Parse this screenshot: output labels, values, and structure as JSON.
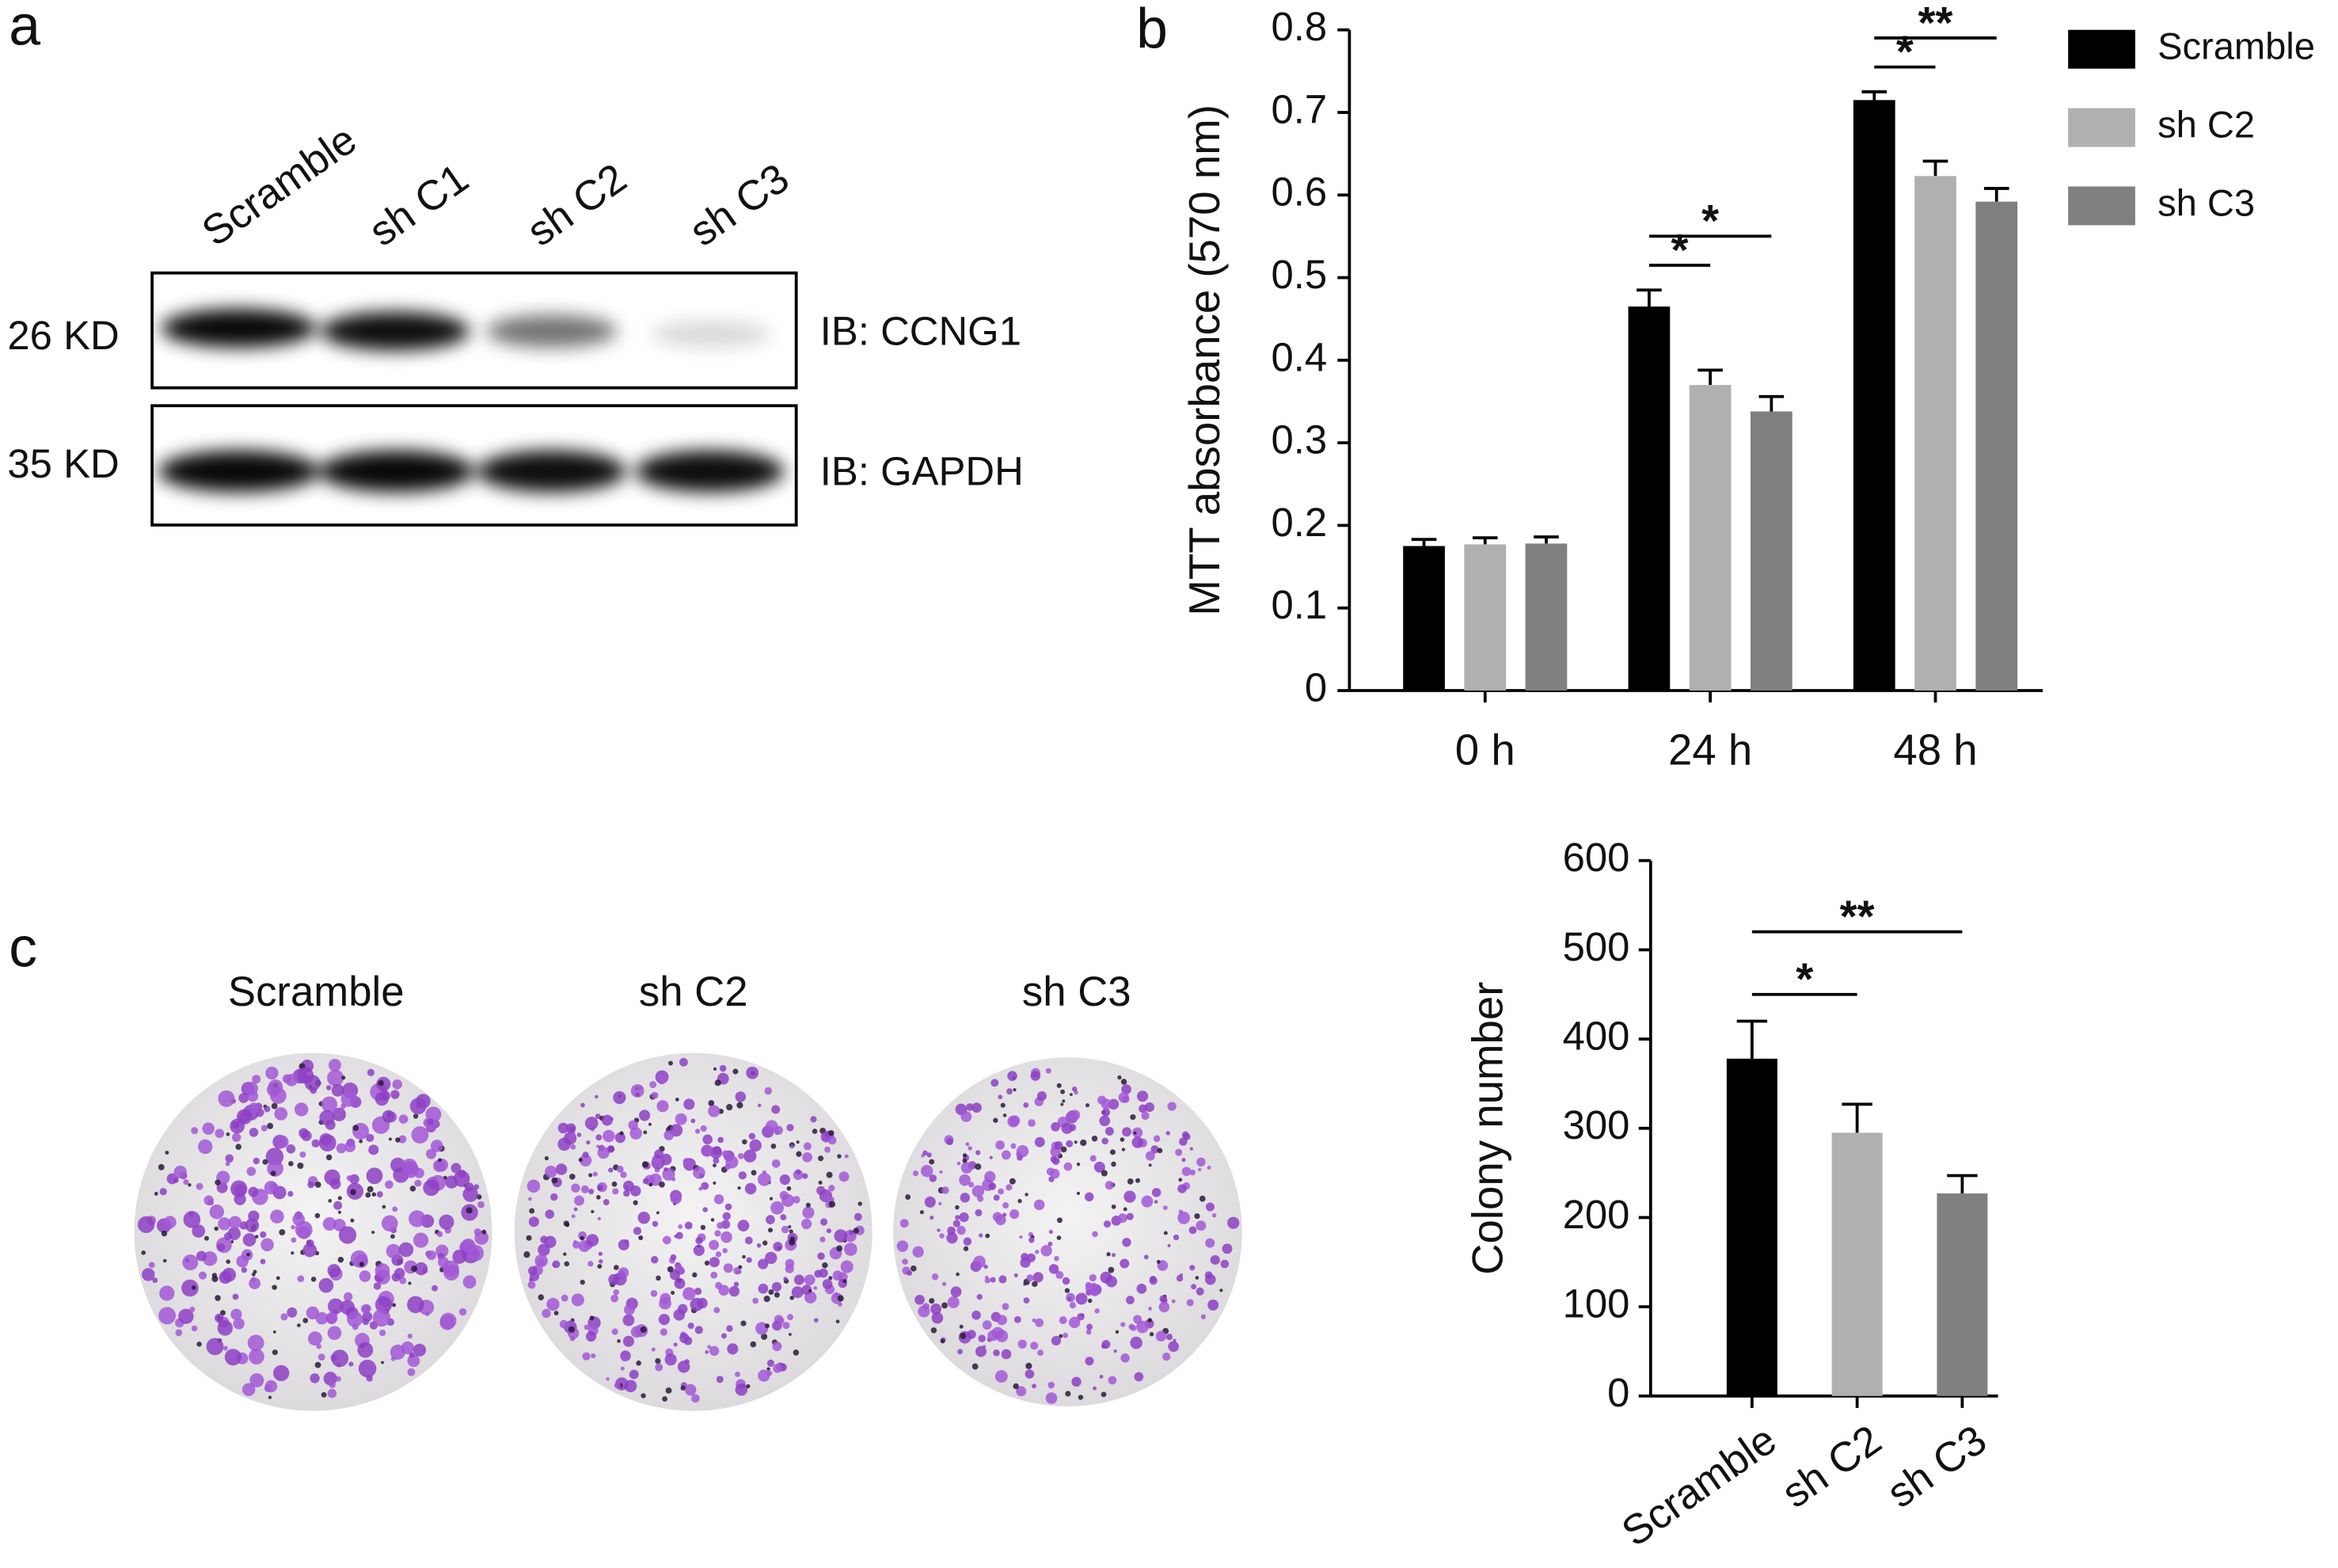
{
  "figure": {
    "panel_labels": [
      "a",
      "b",
      "c"
    ],
    "blot": {
      "lanes": [
        "Scramble",
        "sh C1",
        "sh C2",
        "sh C3"
      ],
      "sizes": [
        "26 KD",
        "35 KD"
      ],
      "antibodies": [
        "IB: CCNG1",
        "IB: GAPDH"
      ]
    },
    "plates": [
      "Scramble",
      "sh C2",
      "sh C3"
    ]
  },
  "chart_data": [
    {
      "type": "bar",
      "y_label": "MTT absorbance (570 nm)",
      "categories": [
        "0 h",
        "24 h",
        "48 h"
      ],
      "series": [
        {
          "name": "Scramble",
          "color": "#000000",
          "values": [
            0.175,
            0.465,
            0.715
          ],
          "errors": [
            0.008,
            0.02,
            0.01
          ]
        },
        {
          "name": "sh C2",
          "color": "#b0b0b0",
          "values": [
            0.177,
            0.37,
            0.623
          ],
          "errors": [
            0.008,
            0.018,
            0.018
          ]
        },
        {
          "name": "sh C3",
          "color": "#808080",
          "values": [
            0.178,
            0.338,
            0.592
          ],
          "errors": [
            0.008,
            0.018,
            0.016
          ]
        }
      ],
      "ylim": [
        0,
        0.8
      ],
      "yticks": [
        0,
        0.1,
        0.2,
        0.3,
        0.4,
        0.5,
        0.6,
        0.7,
        0.8
      ],
      "legend": "right",
      "annotations": [
        {
          "label": "*",
          "category": 1,
          "from": 0,
          "to": 1
        },
        {
          "label": "*",
          "category": 1,
          "from": 0,
          "to": 2
        },
        {
          "label": "*",
          "category": 2,
          "from": 0,
          "to": 1
        },
        {
          "label": "**",
          "category": 2,
          "from": 0,
          "to": 2
        }
      ]
    },
    {
      "type": "bar",
      "y_label": "Colony number",
      "categories": [
        "Scramble",
        "sh C2",
        "sh C3"
      ],
      "values": [
        378,
        295,
        227
      ],
      "errors": [
        42,
        32,
        20
      ],
      "colors": [
        "#000000",
        "#b0b0b0",
        "#808080"
      ],
      "ylim": [
        0,
        600
      ],
      "yticks": [
        0,
        100,
        200,
        300,
        400,
        500,
        600
      ],
      "annotations": [
        {
          "label": "*",
          "from": 0,
          "to": 1
        },
        {
          "label": "**",
          "from": 0,
          "to": 2
        }
      ]
    }
  ]
}
